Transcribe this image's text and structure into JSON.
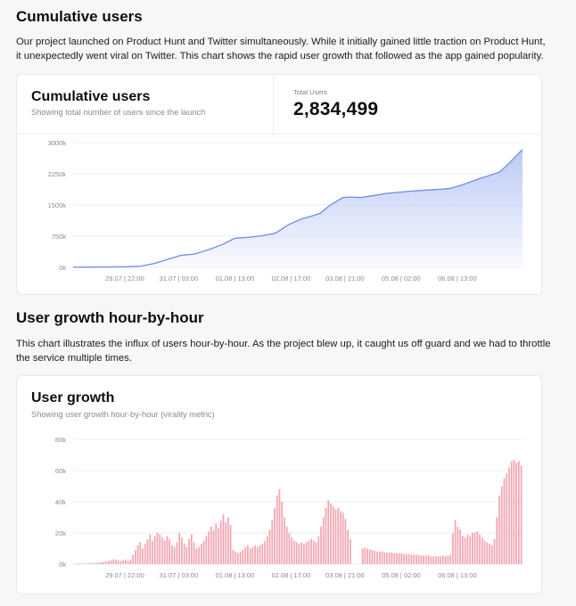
{
  "section1": {
    "heading": "Cumulative users",
    "paragraph": "Our project launched on Product Hunt and Twitter simultaneously. While it initially gained little traction on Product Hunt, it unexpectedly went viral on Twitter. This chart shows the rapid user growth that followed as the app gained popularity."
  },
  "card1": {
    "title": "Cumulative users",
    "subtitle": "Showing total number of users since the launch",
    "stat_label": "Total Users",
    "stat_value": "2,834,499"
  },
  "section2": {
    "heading": "User growth hour-by-hour",
    "paragraph": "This chart illustrates the influx of users hour-by-hour. As the project blew up, it caught us off guard and we had to throttle the service multiple times."
  },
  "card2": {
    "title": "User growth",
    "subtitle": "Showing user growth hour-by-hour (virality metric)"
  },
  "colors": {
    "area_stroke": "#6f8ce8",
    "area_fill": "#b8c7f5",
    "bar_fill": "#f1a4b0",
    "grid": "#eeeef1",
    "tick_text": "#8a8a92"
  },
  "chart_data": [
    {
      "type": "area",
      "title": "Cumulative users",
      "x_tick_labels": [
        "29.07 | 22:00",
        "31.07 | 03:00",
        "01.08 | 13:00",
        "02.08 | 17:00",
        "03.08 | 21:00",
        "05.08 | 02:00",
        "06.08 | 13:00"
      ],
      "y_tick_labels": [
        "0k",
        "750k",
        "1500k",
        "2250k",
        "3000k"
      ],
      "ylim": [
        0,
        3000
      ],
      "y_unit": "k",
      "x_range": [
        0,
        100
      ],
      "x_tick_positions": [
        11.5,
        23.5,
        36,
        48.5,
        60.5,
        73,
        85.5
      ],
      "points": [
        [
          0,
          5
        ],
        [
          8,
          8
        ],
        [
          12,
          15
        ],
        [
          15,
          30
        ],
        [
          18,
          90
        ],
        [
          21,
          190
        ],
        [
          24,
          290
        ],
        [
          27,
          320
        ],
        [
          30,
          420
        ],
        [
          33,
          540
        ],
        [
          36,
          700
        ],
        [
          39,
          720
        ],
        [
          42,
          760
        ],
        [
          45,
          820
        ],
        [
          48,
          1030
        ],
        [
          51,
          1170
        ],
        [
          53,
          1230
        ],
        [
          55,
          1300
        ],
        [
          57,
          1480
        ],
        [
          60,
          1680
        ],
        [
          62,
          1690
        ],
        [
          64,
          1680
        ],
        [
          67,
          1730
        ],
        [
          70,
          1780
        ],
        [
          73,
          1810
        ],
        [
          76,
          1840
        ],
        [
          79,
          1860
        ],
        [
          82,
          1880
        ],
        [
          84,
          1900
        ],
        [
          87,
          2000
        ],
        [
          90,
          2120
        ],
        [
          93,
          2220
        ],
        [
          95,
          2300
        ],
        [
          97,
          2500
        ],
        [
          100,
          2834
        ]
      ],
      "grid": true
    },
    {
      "type": "bar",
      "title": "User growth",
      "x_tick_labels": [
        "29.07 | 22:00",
        "31.07 | 03:00",
        "01.08 | 13:00",
        "02.08 | 17:00",
        "03.08 | 21:00",
        "05.08 | 02:00",
        "06.08 | 13:00"
      ],
      "y_tick_labels": [
        "0k",
        "20k",
        "40k",
        "60k",
        "80k"
      ],
      "ylim": [
        0,
        80
      ],
      "y_unit": "k",
      "x_range": [
        0,
        100
      ],
      "x_tick_positions": [
        11.5,
        23.5,
        36,
        48.5,
        60.5,
        73,
        85.5
      ],
      "values": [
        0.2,
        0.3,
        0.3,
        0.4,
        0.4,
        0.5,
        0.5,
        0.6,
        0.6,
        0.7,
        1.0,
        1.2,
        1.5,
        1.8,
        2.0,
        2.5,
        3.0,
        3.0,
        2.5,
        2.0,
        2.5,
        3.0,
        2.0,
        3.0,
        6.0,
        9.0,
        12.0,
        14.0,
        10.0,
        13.0,
        16.0,
        19.0,
        15.0,
        18.0,
        20.0,
        19.0,
        17.0,
        15.0,
        18.0,
        16.0,
        12.0,
        11.0,
        14.0,
        20.0,
        17.0,
        13.0,
        11.0,
        16.0,
        19.0,
        14.0,
        10.0,
        11.0,
        13.0,
        15.0,
        18.0,
        21.0,
        24.0,
        22.0,
        26.0,
        23.0,
        28.0,
        32.0,
        27.0,
        30.0,
        25.0,
        9.0,
        8.0,
        7.0,
        8.0,
        9.0,
        11.0,
        12.0,
        10.0,
        11.0,
        12.0,
        11.0,
        12.0,
        13.0,
        15.0,
        18.0,
        22.0,
        28.0,
        36.0,
        44.0,
        48.0,
        40.0,
        30.0,
        24.0,
        20.0,
        17.0,
        15.0,
        14.0,
        13.0,
        14.0,
        13.0,
        14.0,
        15.0,
        16.0,
        15.0,
        14.0,
        18.0,
        24.0,
        30.0,
        36.0,
        41.0,
        39.0,
        37.0,
        35.0,
        36.0,
        34.0,
        33.0,
        29.0,
        22.0,
        16.0,
        0,
        0,
        0,
        0,
        10.0,
        10.5,
        10.0,
        9.5,
        9.0,
        8.5,
        8.0,
        8.0,
        8.0,
        7.5,
        7.5,
        7.5,
        7.5,
        7.0,
        7.0,
        7.0,
        7.0,
        6.5,
        6.5,
        6.5,
        6.0,
        6.0,
        6.0,
        6.0,
        5.5,
        5.5,
        5.5,
        5.5,
        5.0,
        5.0,
        5.0,
        5.0,
        5.0,
        5.5,
        5.0,
        5.5,
        6.0,
        20.0,
        28.0,
        24.0,
        22.0,
        18.0,
        17.0,
        19.0,
        18.0,
        20.0,
        20.0,
        21.0,
        19.0,
        17.0,
        15.0,
        14.0,
        13.0,
        12.0,
        16.0,
        30.0,
        44.0,
        50.0,
        55.0,
        58.0,
        62.0,
        66.0,
        67.0,
        65.0,
        66.0,
        63.0
      ],
      "grid": true
    }
  ]
}
